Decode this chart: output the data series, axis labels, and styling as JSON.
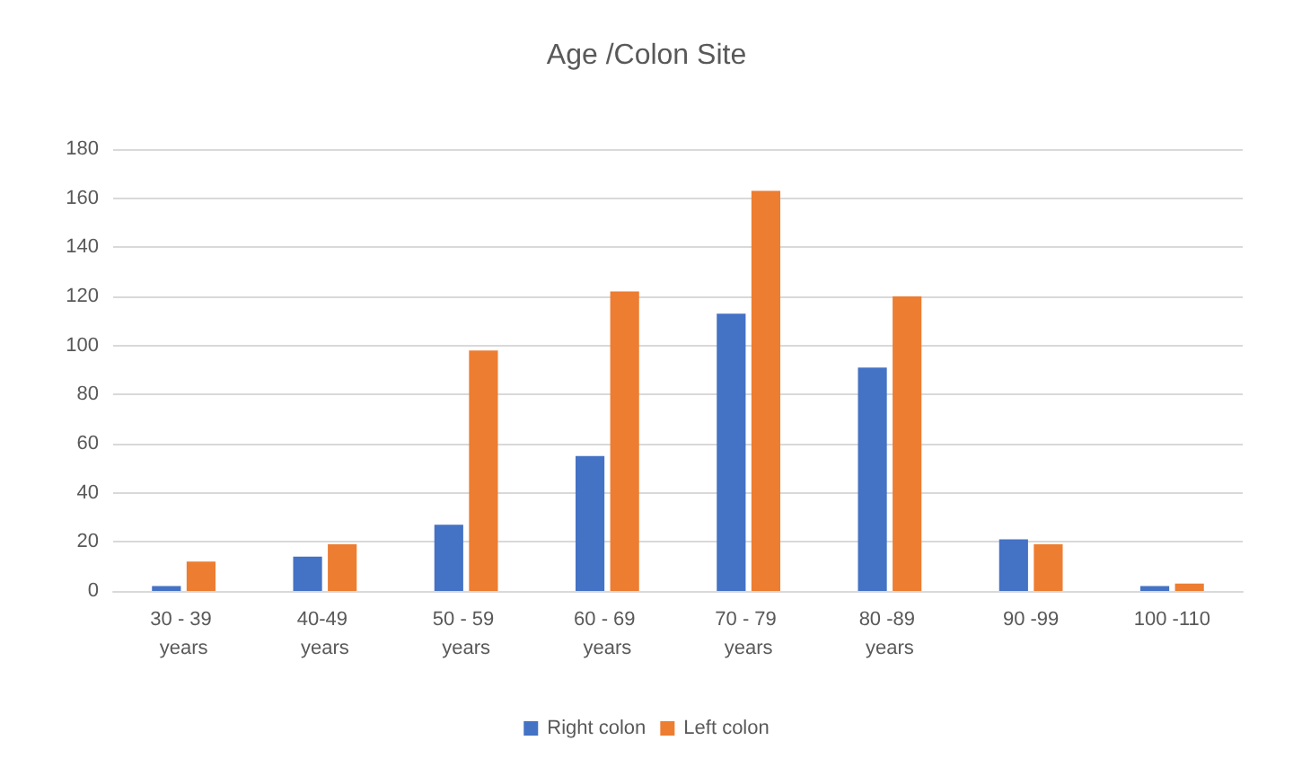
{
  "chart_data": {
    "type": "bar",
    "title": "Age /Colon Site",
    "categories": [
      "30 - 39 years",
      "40-49 years",
      "50 - 59 years",
      "60 - 69 years",
      "70 - 79 years",
      "80 -89 years",
      "90 -99",
      "100 -110"
    ],
    "series": [
      {
        "name": "Right colon",
        "color": "#4472c4",
        "values": [
          2,
          14,
          27,
          55,
          113,
          91,
          21,
          2
        ]
      },
      {
        "name": "Left colon",
        "color": "#ed7d31",
        "values": [
          12,
          19,
          98,
          122,
          163,
          120,
          19,
          3
        ]
      }
    ],
    "ylim": [
      0,
      180
    ],
    "yticks": [
      0,
      20,
      40,
      60,
      80,
      100,
      120,
      140,
      160,
      180
    ],
    "grid": "y",
    "legend": "bottom"
  }
}
